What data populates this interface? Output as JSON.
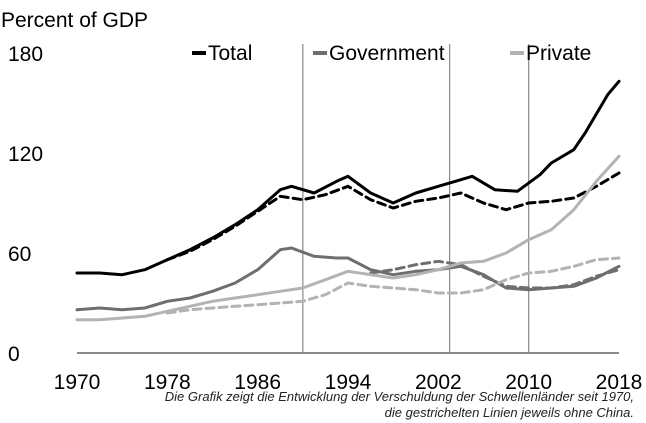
{
  "chart_data": {
    "type": "line",
    "ylabel": "Percent of GDP",
    "ylim": [
      0,
      180
    ],
    "yticks": [
      0,
      60,
      120,
      180
    ],
    "xlim": [
      1970,
      2018
    ],
    "xticks": [
      1970,
      1978,
      1986,
      1994,
      2002,
      2010,
      2018
    ],
    "vlines": [
      1990,
      2003,
      2010
    ],
    "legend_position": "top",
    "series": [
      {
        "name": "Total",
        "color": "#000000",
        "dash": false,
        "x": [
          1970,
          1972,
          1974,
          1976,
          1978,
          1980,
          1982,
          1984,
          1986,
          1988,
          1989,
          1991,
          1993,
          1994,
          1996,
          1998,
          2000,
          2002,
          2004,
          2005,
          2007,
          2009,
          2011,
          2012,
          2014,
          2015,
          2017,
          2018
        ],
        "y": [
          48,
          48,
          47,
          50,
          56,
          62,
          69,
          77,
          86,
          98,
          100,
          96,
          103,
          106,
          96,
          90,
          96,
          100,
          104,
          106,
          98,
          97,
          107,
          114,
          122,
          132,
          155,
          163
        ]
      },
      {
        "name": "",
        "color": "#000000",
        "dash": true,
        "x": [
          1978,
          1980,
          1982,
          1984,
          1986,
          1988,
          1990,
          1992,
          1994,
          1996,
          1998,
          2000,
          2002,
          2004,
          2006,
          2008,
          2010,
          2012,
          2014,
          2016,
          2018
        ],
        "y": [
          56,
          61,
          68,
          76,
          85,
          94,
          92,
          95,
          100,
          92,
          87,
          91,
          93,
          96,
          90,
          86,
          90,
          91,
          93,
          100,
          108
        ]
      },
      {
        "name": "Government",
        "color": "#6e6e6e",
        "dash": false,
        "x": [
          1970,
          1972,
          1974,
          1976,
          1978,
          1980,
          1982,
          1984,
          1986,
          1988,
          1989,
          1991,
          1993,
          1994,
          1996,
          1998,
          2000,
          2002,
          2004,
          2006,
          2008,
          2010,
          2012,
          2014,
          2016,
          2018
        ],
        "y": [
          26,
          27,
          26,
          27,
          31,
          33,
          37,
          42,
          50,
          62,
          63,
          58,
          57,
          57,
          50,
          47,
          49,
          50,
          52,
          47,
          39,
          38,
          39,
          40,
          45,
          52
        ]
      },
      {
        "name": "",
        "color": "#6e6e6e",
        "dash": true,
        "x": [
          1996,
          1998,
          2000,
          2002,
          2004,
          2006,
          2008,
          2010,
          2012,
          2014,
          2016,
          2018
        ],
        "y": [
          48,
          50,
          53,
          55,
          53,
          46,
          40,
          39,
          39,
          41,
          46,
          50
        ]
      },
      {
        "name": "Private",
        "color": "#b3b3b3",
        "dash": false,
        "x": [
          1970,
          1972,
          1974,
          1976,
          1978,
          1980,
          1982,
          1984,
          1986,
          1988,
          1990,
          1992,
          1994,
          1996,
          1998,
          2000,
          2002,
          2004,
          2006,
          2008,
          2010,
          2012,
          2014,
          2016,
          2018
        ],
        "y": [
          20,
          20,
          21,
          22,
          25,
          28,
          31,
          33,
          35,
          37,
          39,
          44,
          49,
          47,
          45,
          47,
          50,
          54,
          55,
          60,
          68,
          74,
          86,
          103,
          118
        ]
      },
      {
        "name": "",
        "color": "#b3b3b3",
        "dash": true,
        "x": [
          1978,
          1980,
          1982,
          1984,
          1986,
          1988,
          1990,
          1992,
          1994,
          1996,
          1998,
          2000,
          2002,
          2004,
          2006,
          2008,
          2010,
          2012,
          2014,
          2016,
          2018
        ],
        "y": [
          24,
          26,
          27,
          28,
          29,
          30,
          31,
          35,
          42,
          40,
          39,
          38,
          36,
          36,
          38,
          44,
          48,
          49,
          52,
          56,
          57
        ]
      }
    ]
  },
  "caption": {
    "line1": "Die Grafik zeigt die Entwicklung der Verschuldung der Schwellenländer seit 1970,",
    "line2": "die gestrichelten Linien jeweils ohne China."
  }
}
